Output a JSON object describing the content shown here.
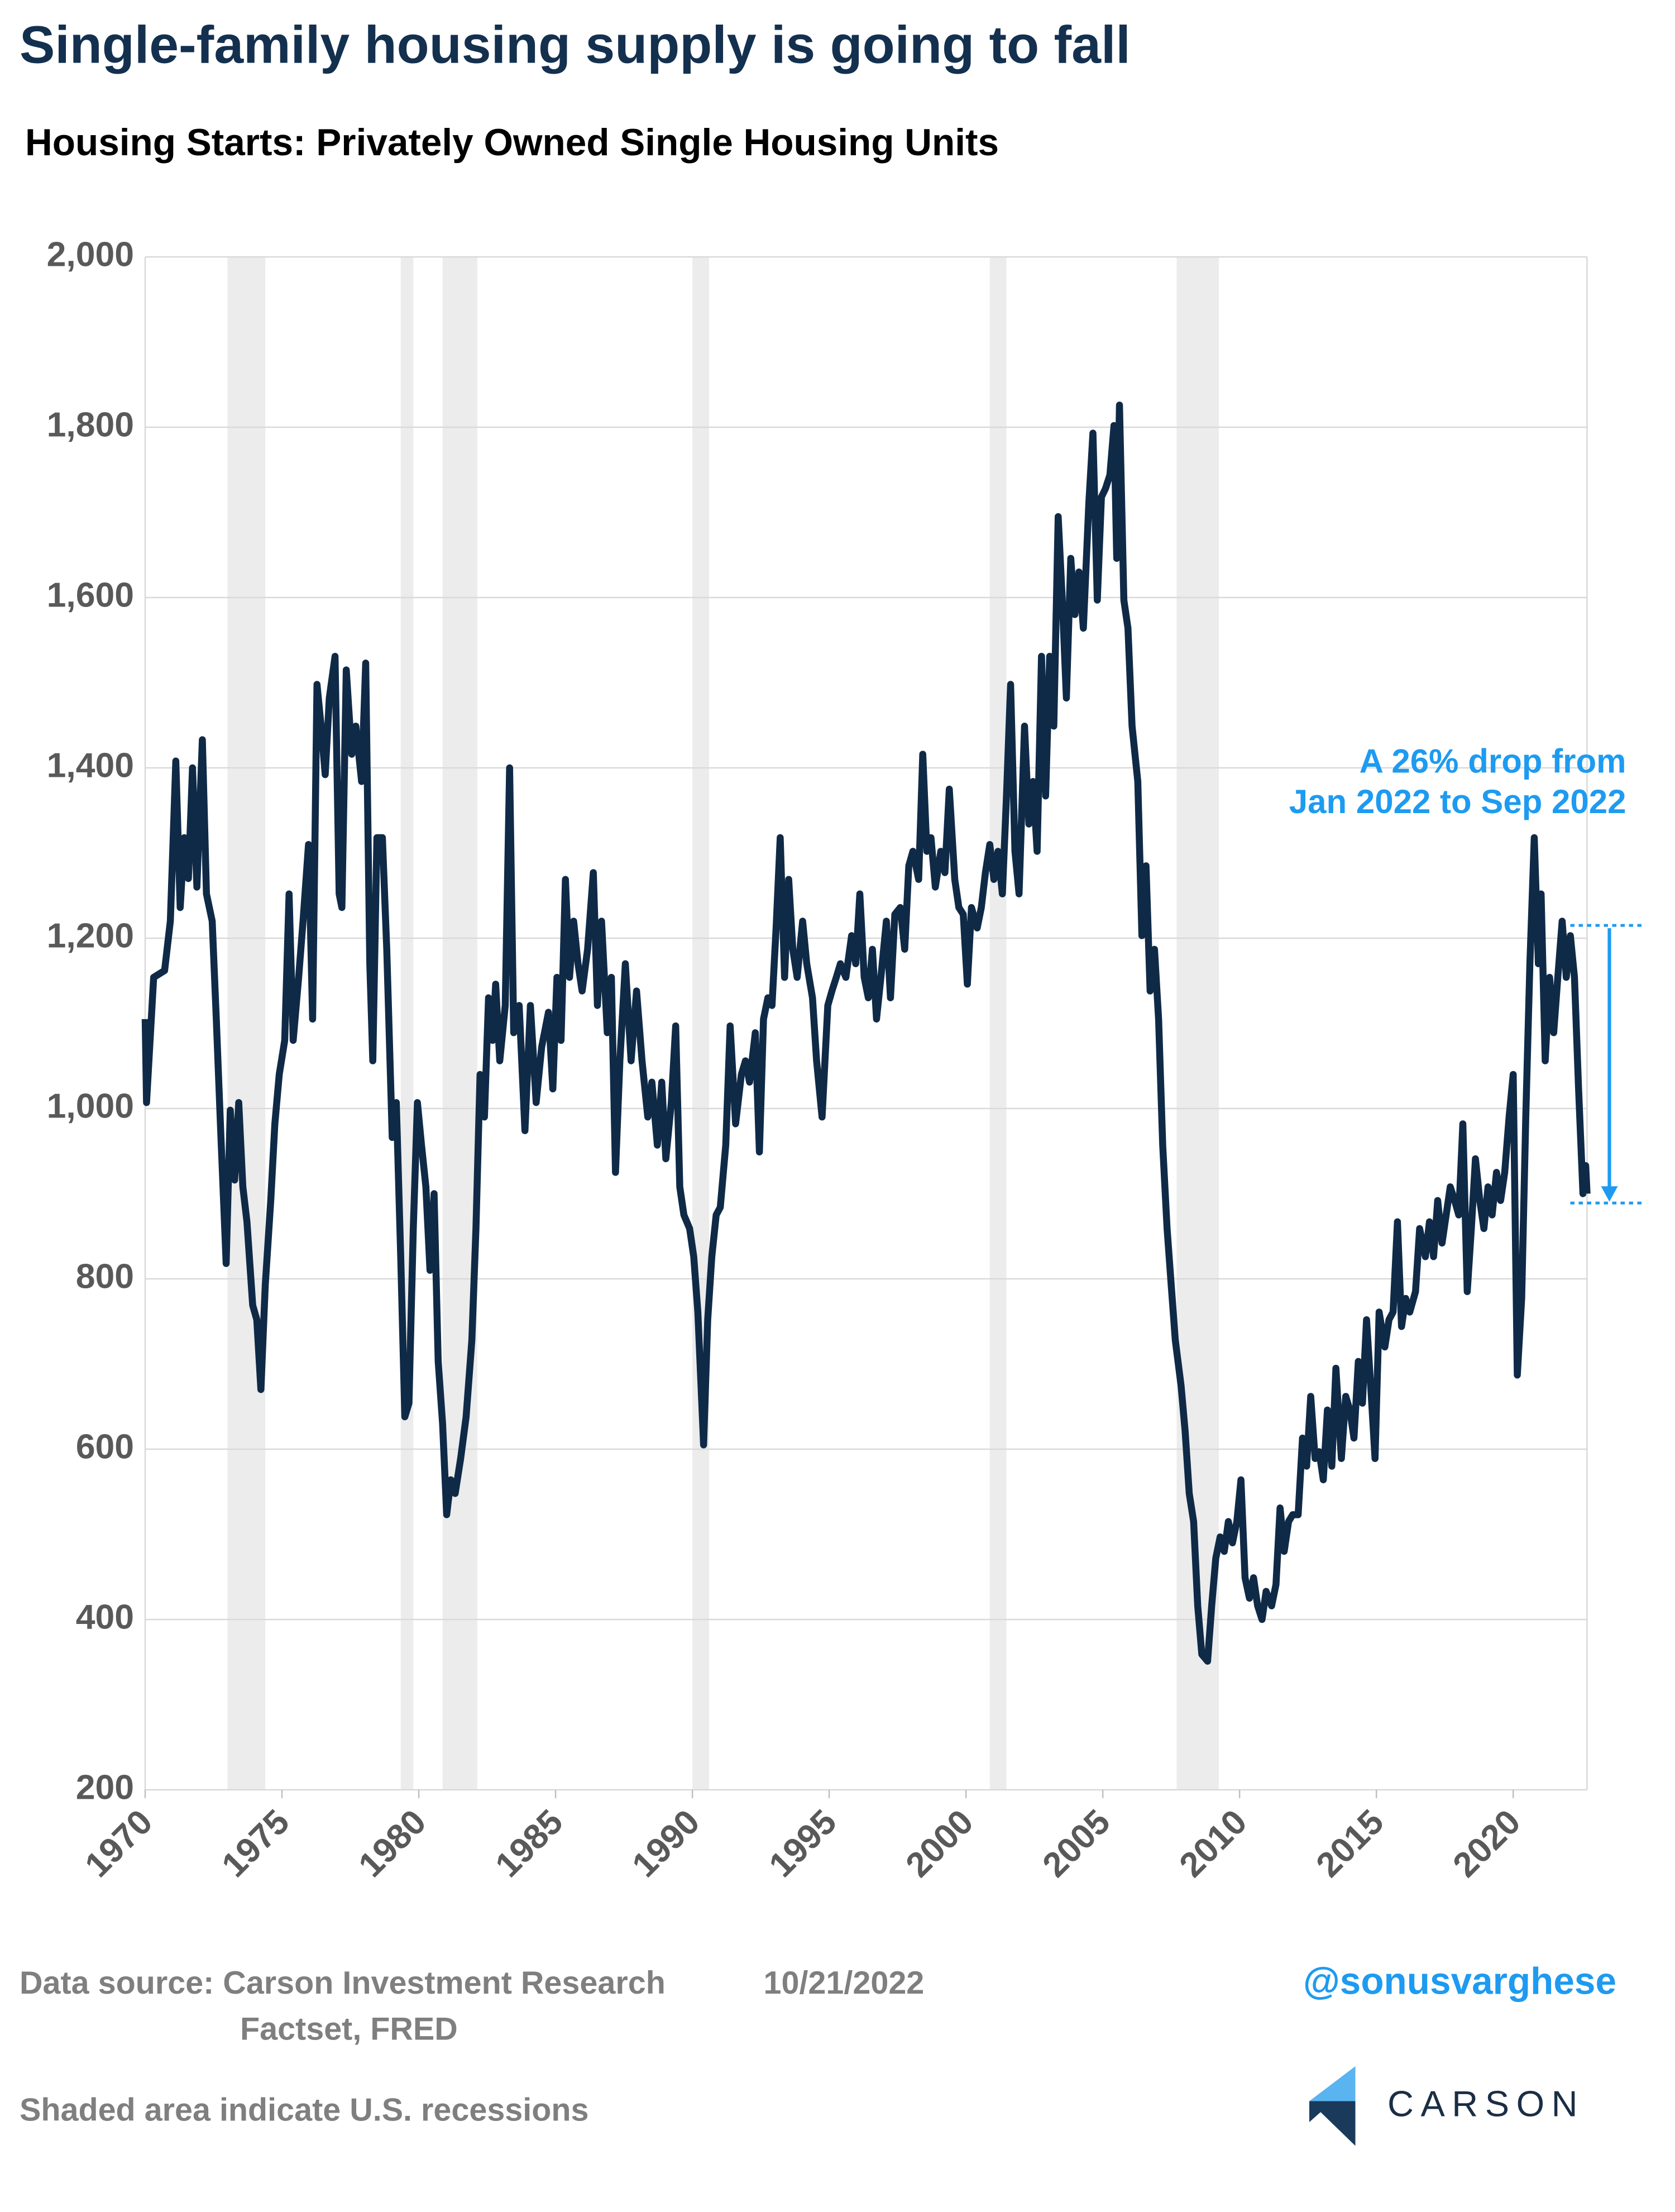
{
  "chart_data": {
    "type": "line",
    "title": "Single-family housing supply is going to fall",
    "subtitle": "Housing Starts: Privately Owned Single Housing Units",
    "color": "#0f2a47",
    "grid": true,
    "xlim": [
      1970,
      2022.7
    ],
    "xticks": [
      1970,
      1975,
      1980,
      1985,
      1990,
      1995,
      2000,
      2005,
      2010,
      2015,
      2020
    ],
    "ylim": [
      200,
      2000
    ],
    "yticks": [
      {
        "value": 2000,
        "label": "2,000"
      },
      {
        "value": 1800,
        "label": "1,800"
      },
      {
        "value": 1600,
        "label": "1,600"
      },
      {
        "value": 1400,
        "label": "1,400"
      },
      {
        "value": 1200,
        "label": "1,200"
      },
      {
        "value": 1000,
        "label": "1,000"
      },
      800,
      600,
      400,
      200
    ],
    "recessions": [
      [
        1973.01,
        1974.39
      ],
      [
        1979.34,
        1979.8
      ],
      [
        1980.87,
        1982.14
      ],
      [
        1990.0,
        1990.61
      ],
      [
        2000.87,
        2001.48
      ],
      [
        2007.7,
        2009.24
      ]
    ],
    "x": [
      1970.0,
      1970.05,
      1970.31,
      1970.71,
      1970.92,
      1971.12,
      1971.28,
      1971.43,
      1971.58,
      1971.73,
      1971.89,
      1972.09,
      1972.24,
      1972.45,
      1972.6,
      1972.76,
      1972.96,
      1973.11,
      1973.27,
      1973.42,
      1973.57,
      1973.72,
      1973.93,
      1974.08,
      1974.23,
      1974.39,
      1974.59,
      1974.74,
      1974.9,
      1975.1,
      1975.26,
      1975.41,
      1975.61,
      1975.77,
      1975.97,
      1976.12,
      1976.28,
      1976.43,
      1976.58,
      1976.73,
      1976.94,
      1977.09,
      1977.19,
      1977.35,
      1977.55,
      1977.7,
      1977.91,
      1978.06,
      1978.21,
      1978.32,
      1978.47,
      1978.67,
      1978.83,
      1979.03,
      1979.18,
      1979.34,
      1979.49,
      1979.64,
      1979.8,
      1979.95,
      1980.1,
      1980.26,
      1980.41,
      1980.56,
      1980.71,
      1980.87,
      1981.02,
      1981.17,
      1981.33,
      1981.53,
      1981.73,
      1981.94,
      1982.09,
      1982.24,
      1982.4,
      1982.55,
      1982.7,
      1982.81,
      1982.96,
      1983.16,
      1983.32,
      1983.47,
      1983.67,
      1983.88,
      1984.08,
      1984.29,
      1984.49,
      1984.74,
      1984.9,
      1985.05,
      1985.2,
      1985.36,
      1985.51,
      1985.66,
      1985.82,
      1985.97,
      1986.17,
      1986.38,
      1986.53,
      1986.68,
      1986.89,
      1987.04,
      1987.19,
      1987.35,
      1987.55,
      1987.76,
      1987.96,
      1988.16,
      1988.37,
      1988.52,
      1988.72,
      1988.88,
      1989.03,
      1989.23,
      1989.39,
      1989.54,
      1989.69,
      1989.9,
      1990.05,
      1990.2,
      1990.41,
      1990.56,
      1990.71,
      1990.87,
      1991.02,
      1991.22,
      1991.38,
      1991.58,
      1991.79,
      1991.94,
      1992.09,
      1992.3,
      1992.45,
      1992.6,
      1992.76,
      1992.91,
      1993.06,
      1993.21,
      1993.37,
      1993.52,
      1993.67,
      1993.83,
      1994.03,
      1994.18,
      1994.39,
      1994.54,
      1994.74,
      1994.95,
      1995.1,
      1995.26,
      1995.41,
      1995.61,
      1995.82,
      1995.97,
      1996.12,
      1996.28,
      1996.43,
      1996.58,
      1996.73,
      1996.89,
      1997.09,
      1997.24,
      1997.4,
      1997.6,
      1997.76,
      1997.91,
      1998.06,
      1998.27,
      1998.42,
      1998.57,
      1998.72,
      1998.88,
      1999.08,
      1999.23,
      1999.39,
      1999.59,
      1999.74,
      1999.9,
      2000.05,
      2000.2,
      2000.41,
      2000.56,
      2000.71,
      2000.87,
      2001.02,
      2001.17,
      2001.33,
      2001.48,
      2001.63,
      2001.79,
      2001.94,
      2002.14,
      2002.3,
      2002.45,
      2002.6,
      2002.76,
      2002.91,
      2003.06,
      2003.21,
      2003.37,
      2003.52,
      2003.67,
      2003.83,
      2003.98,
      2004.13,
      2004.29,
      2004.49,
      2004.64,
      2004.8,
      2004.95,
      2005.1,
      2005.26,
      2005.41,
      2005.51,
      2005.61,
      2005.77,
      2005.92,
      2006.07,
      2006.28,
      2006.43,
      2006.58,
      2006.73,
      2006.89,
      2007.04,
      2007.19,
      2007.35,
      2007.5,
      2007.65,
      2007.86,
      2008.01,
      2008.16,
      2008.32,
      2008.47,
      2008.62,
      2008.83,
      2008.98,
      2009.13,
      2009.29,
      2009.44,
      2009.59,
      2009.74,
      2009.9,
      2010.05,
      2010.2,
      2010.36,
      2010.51,
      2010.66,
      2010.82,
      2010.97,
      2011.17,
      2011.33,
      2011.48,
      2011.63,
      2011.79,
      2011.94,
      2012.14,
      2012.3,
      2012.45,
      2012.6,
      2012.76,
      2012.91,
      2013.06,
      2013.21,
      2013.37,
      2013.52,
      2013.72,
      2013.88,
      2014.03,
      2014.18,
      2014.34,
      2014.49,
      2014.64,
      2014.8,
      2014.95,
      2015.1,
      2015.31,
      2015.46,
      2015.61,
      2015.77,
      2015.92,
      2016.07,
      2016.22,
      2016.43,
      2016.58,
      2016.79,
      2016.94,
      2017.09,
      2017.24,
      2017.4,
      2017.55,
      2017.7,
      2017.86,
      2018.01,
      2018.16,
      2018.32,
      2018.47,
      2018.62,
      2018.78,
      2018.93,
      2019.08,
      2019.23,
      2019.39,
      2019.54,
      2019.69,
      2019.85,
      2020.0,
      2020.15,
      2020.31,
      2020.46,
      2020.61,
      2020.77,
      2020.92,
      2021.02,
      2021.17,
      2021.33,
      2021.48,
      2021.63,
      2021.79,
      2021.94,
      2022.09,
      2022.24,
      2022.39,
      2022.55,
      2022.65,
      2022.7
    ],
    "values": [
      1105,
      1007,
      1154,
      1162,
      1220,
      1408,
      1236,
      1318,
      1270,
      1400,
      1260,
      1433,
      1252,
      1220,
      1105,
      974,
      818,
      998,
      916,
      1007,
      908,
      867,
      769,
      752,
      670,
      793,
      892,
      982,
      1040,
      1080,
      1252,
      1080,
      1154,
      1220,
      1310,
      1105,
      1498,
      1449,
      1392,
      1482,
      1531,
      1252,
      1236,
      1515,
      1416,
      1449,
      1384,
      1523,
      1170,
      1056,
      1318,
      1318,
      1187,
      966,
      1007,
      826,
      638,
      654,
      859,
      1007,
      957,
      908,
      810,
      900,
      703,
      630,
      523,
      564,
      548,
      589,
      638,
      728,
      859,
      1040,
      990,
      1130,
      1080,
      1146,
      1056,
      1121,
      1400,
      1089,
      1121,
      974,
      1121,
      1007,
      1072,
      1113,
      1023,
      1154,
      1080,
      1269,
      1154,
      1220,
      1170,
      1138,
      1187,
      1277,
      1121,
      1220,
      1089,
      1154,
      925,
      1056,
      1170,
      1056,
      1138,
      1056,
      990,
      1031,
      957,
      1031,
      941,
      1007,
      1097,
      908,
      875,
      859,
      826,
      761,
      605,
      752,
      826,
      875,
      884,
      957,
      1097,
      982,
      1040,
      1056,
      1031,
      1089,
      949,
      1105,
      1130,
      1121,
      1212,
      1318,
      1154,
      1269,
      1187,
      1154,
      1220,
      1170,
      1130,
      1056,
      990,
      1121,
      1138,
      1154,
      1170,
      1154,
      1203,
      1170,
      1252,
      1154,
      1130,
      1187,
      1105,
      1154,
      1220,
      1130,
      1228,
      1236,
      1187,
      1285,
      1302,
      1269,
      1416,
      1302,
      1318,
      1260,
      1302,
      1277,
      1375,
      1269,
      1236,
      1228,
      1146,
      1236,
      1212,
      1236,
      1277,
      1310,
      1269,
      1302,
      1252,
      1367,
      1498,
      1302,
      1252,
      1449,
      1334,
      1384,
      1302,
      1531,
      1367,
      1531,
      1449,
      1695,
      1597,
      1482,
      1646,
      1580,
      1630,
      1564,
      1711,
      1793,
      1597,
      1718,
      1728,
      1744,
      1802,
      1646,
      1826,
      1597,
      1564,
      1449,
      1384,
      1203,
      1285,
      1138,
      1187,
      1105,
      957,
      859,
      793,
      728,
      675,
      621,
      548,
      515,
      416,
      359,
      351,
      416,
      472,
      497,
      480,
      515,
      490,
      515,
      564,
      449,
      425,
      449,
      416,
      400,
      433,
      416,
      441,
      531,
      480,
      515,
      523,
      523,
      613,
      580,
      662,
      589,
      597,
      564,
      646,
      580,
      695,
      589,
      662,
      646,
      613,
      703,
      654,
      752,
      670,
      589,
      761,
      720,
      752,
      761,
      867,
      744,
      777,
      761,
      785,
      859,
      826,
      867,
      826,
      892,
      842,
      875,
      908,
      892,
      875,
      982,
      785,
      859,
      941,
      892,
      859,
      908,
      875,
      925,
      892,
      925,
      990,
      1040,
      687,
      777,
      990,
      1170,
      1318,
      1170,
      1252,
      1056,
      1154,
      1089,
      1154,
      1220,
      1154,
      1203,
      1154,
      1023,
      900,
      933,
      900
    ],
    "annotation": [
      "A 26% drop from",
      "Jan 2022 to Sep 2022"
    ],
    "annotation_color": "#1e9bf0",
    "drop": {
      "from": 1215,
      "to": 889
    }
  },
  "footer": {
    "source": "Data source: Carson Investment Research",
    "date": "10/21/2022",
    "source2": "Factset, FRED",
    "note": "Shaded area indicate U.S. recessions",
    "handle": "@sonusvarghese",
    "logo": "CARSON"
  }
}
